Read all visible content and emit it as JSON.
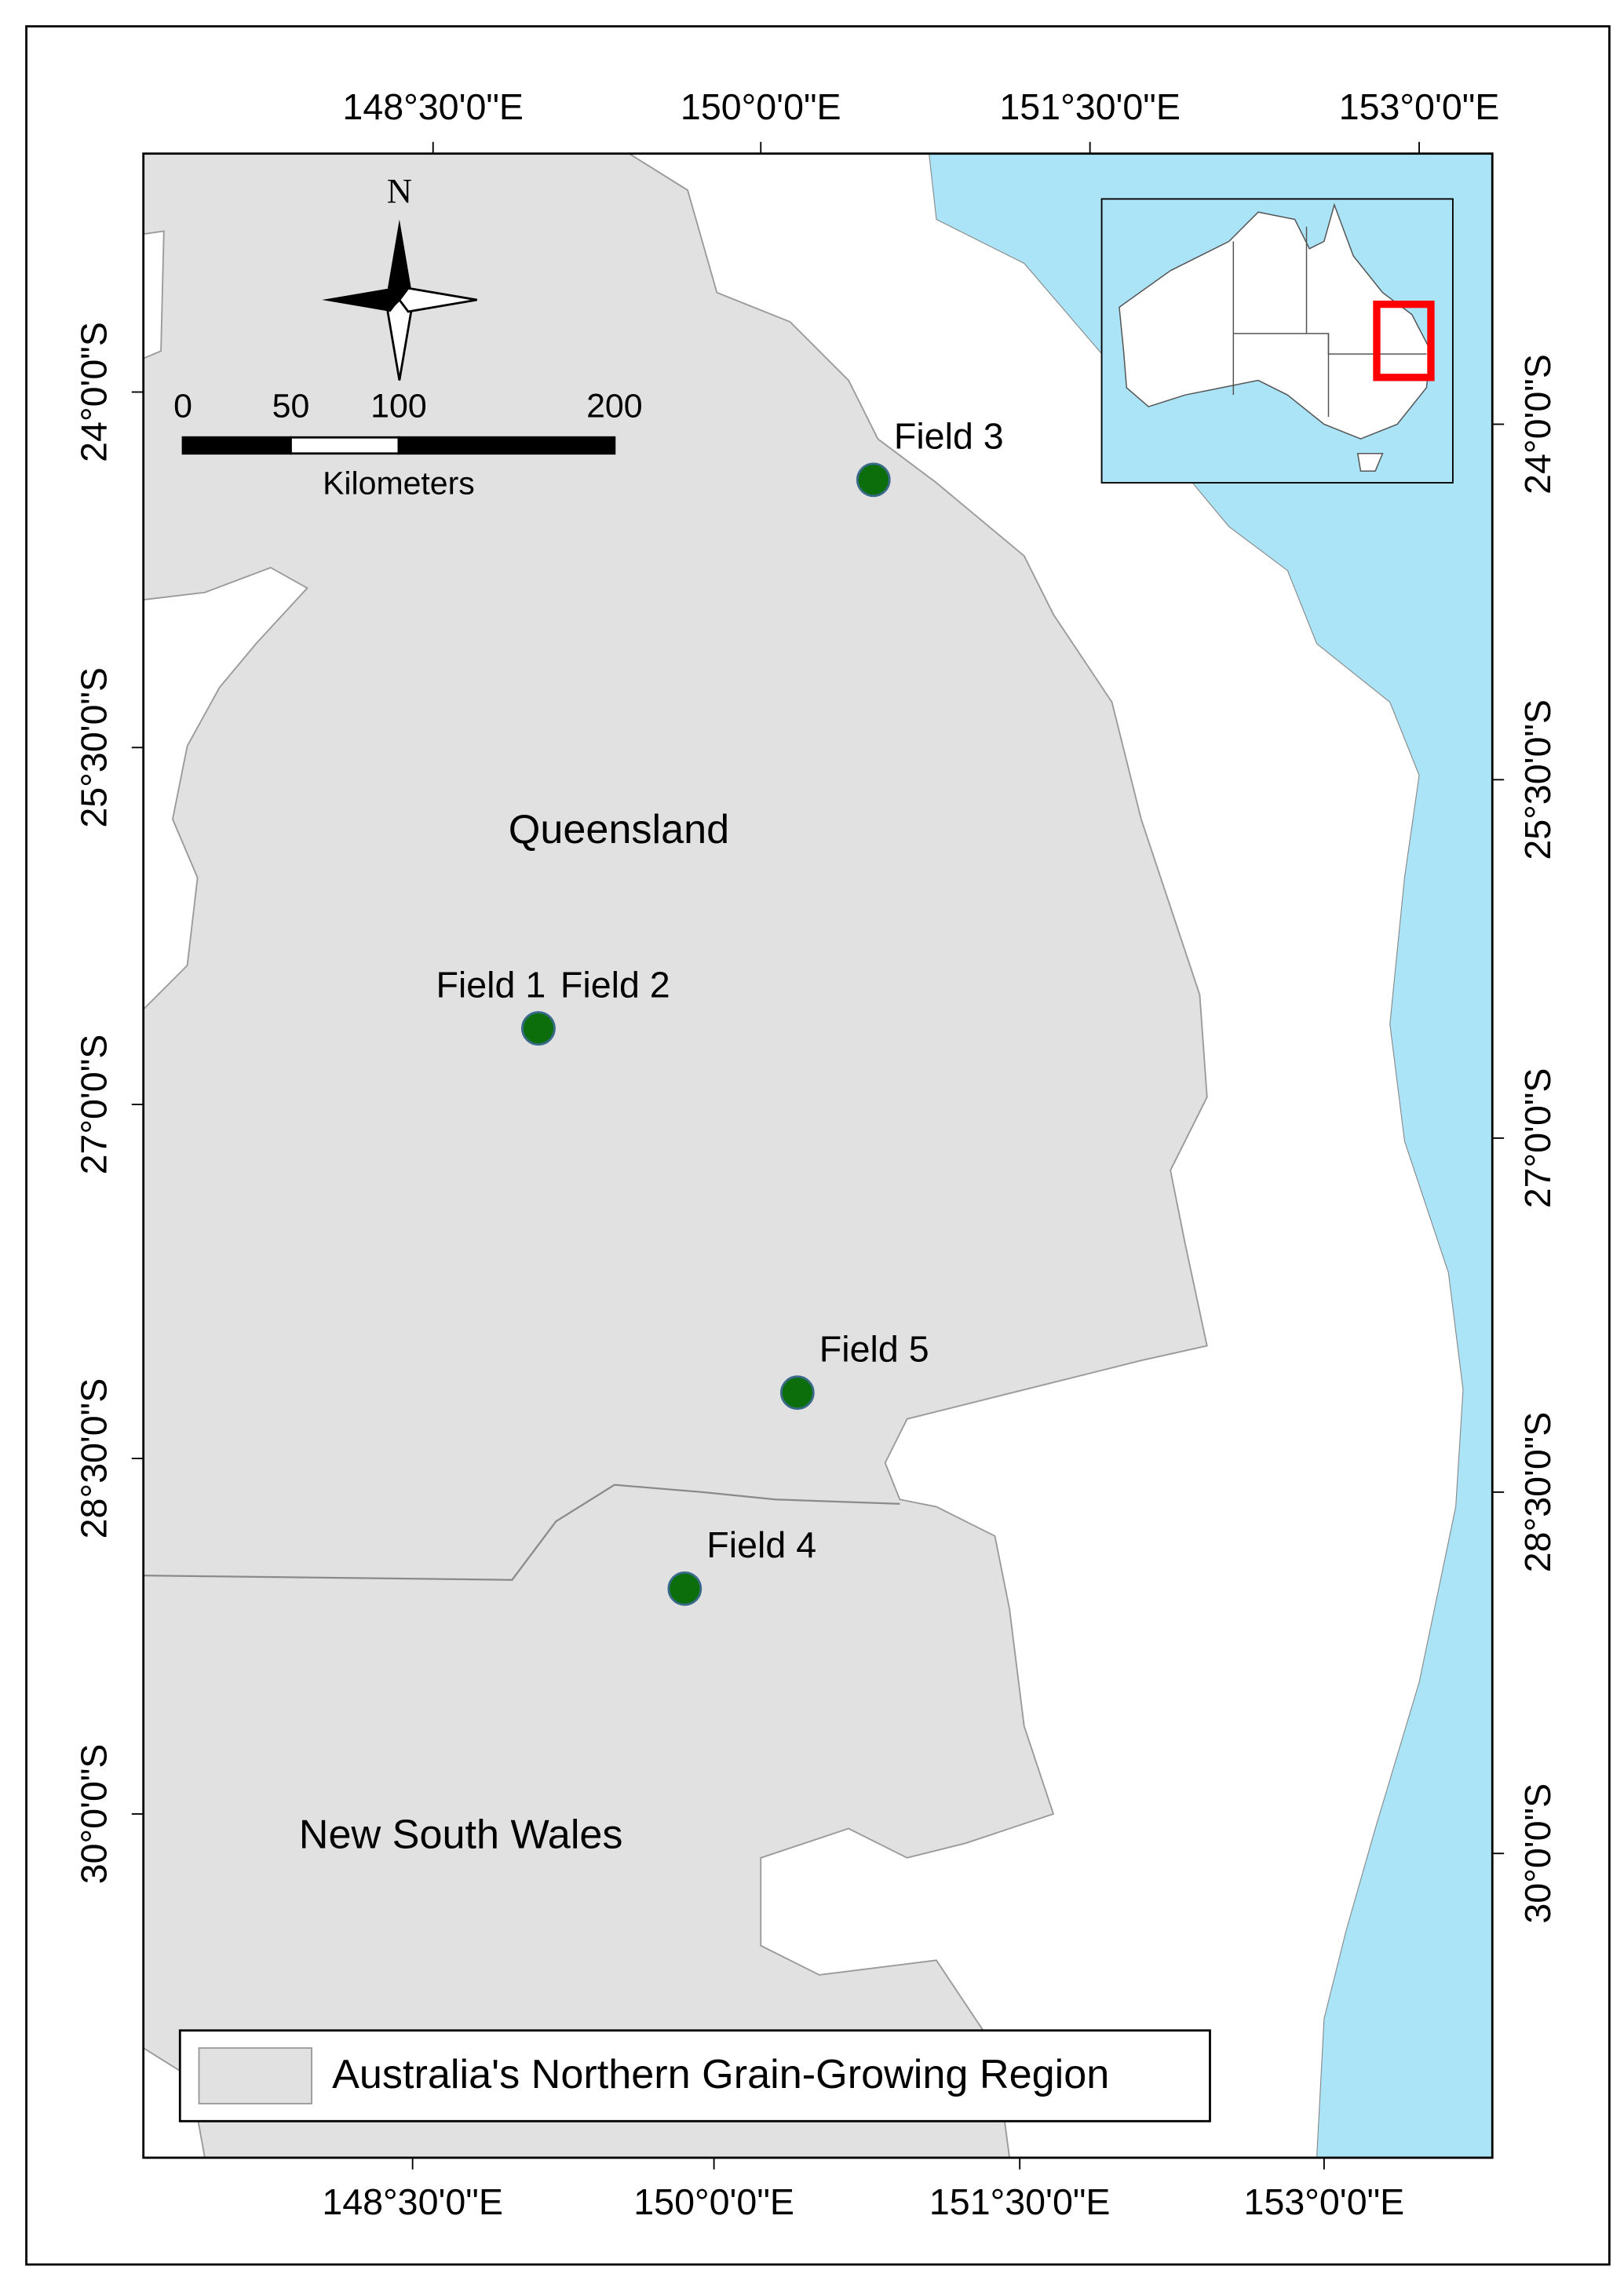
{
  "map": {
    "top_axis_labels": [
      "148°30'0\"E",
      "150°0'0\"E",
      "151°30'0\"E",
      "153°0'0\"E"
    ],
    "bottom_axis_labels": [
      "148°30'0\"E",
      "150°0'0\"E",
      "151°30'0\"E",
      "153°0'0\"E"
    ],
    "left_axis_labels": [
      "24°0'0\"S",
      "25°30'0\"S",
      "27°0'0\"S",
      "28°30'0\"S",
      "30°0'0\"S"
    ],
    "right_axis_labels": [
      "24°0'0\"S",
      "25°30'0\"S",
      "27°0'0\"S",
      "28°30'0\"S",
      "30°0'0\"S"
    ],
    "north_label": "N",
    "scale_bar": {
      "ticks": [
        0,
        50,
        100,
        200
      ],
      "unit": "Kilometers"
    },
    "regions": [
      "Queensland",
      "New South Wales"
    ],
    "fields": [
      "Field 1",
      "Field 2",
      "Field 3",
      "Field 4",
      "Field 5"
    ],
    "legend": "Australia's Northern Grain-Growing Region"
  }
}
